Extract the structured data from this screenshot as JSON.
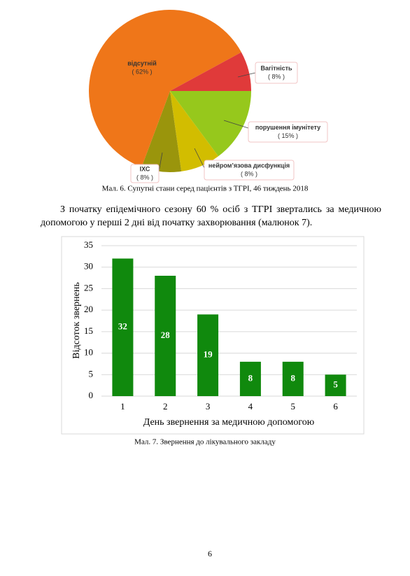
{
  "chart_data": [
    {
      "type": "pie",
      "caption": "Мал. 6. Супутні стани серед пацієнтів з ТГРІ, 46 тиждень 2018",
      "categories": [
        "порушення імунітету",
        "нейром’язова дисфункція",
        "ІХС",
        "відсутній",
        "Вагітність"
      ],
      "values": [
        15,
        8,
        8,
        62,
        8
      ],
      "value_labels": [
        "( 15% )",
        "( 8% )",
        "( 8% )",
        "( 62% )",
        "( 8% )"
      ],
      "colors": [
        "#96c81c",
        "#d2bd00",
        "#9a950c",
        "#ef7619",
        "#e03a3a"
      ]
    },
    {
      "type": "bar",
      "caption": "Мал. 7. Звернення до лікувального закладу",
      "x_label": "День звернення за медичною допомогою",
      "y_label": "Відсоток звернень",
      "categories": [
        "1",
        "2",
        "3",
        "4",
        "5",
        "6"
      ],
      "values": [
        32,
        28,
        19,
        8,
        8,
        5
      ],
      "color": "#10890d",
      "ylim": [
        0,
        35
      ],
      "yticks": [
        0,
        5,
        10,
        15,
        20,
        25,
        30,
        35
      ],
      "grid": true
    }
  ],
  "paragraph": "З початку епідемічного сезону 60 % осіб з ТГРІ звертались за медичною допомогою у перші 2 дні від початку захворювання (малюнок 7).",
  "page_number": "6"
}
